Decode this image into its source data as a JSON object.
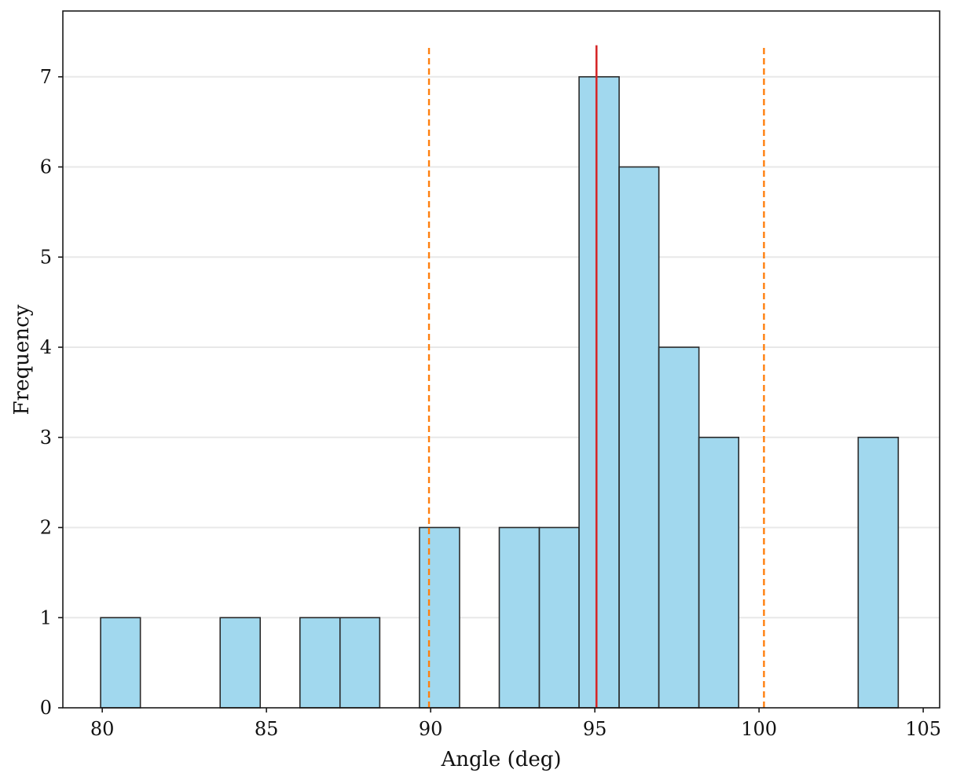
{
  "chart_data": {
    "type": "bar",
    "xlabel": "Angle (deg)",
    "ylabel": "Frequency",
    "xlim": [
      78.8,
      105.5
    ],
    "ylim": [
      0,
      7.73
    ],
    "xticks": [
      80,
      85,
      90,
      95,
      100,
      105
    ],
    "yticks": [
      0,
      1,
      2,
      3,
      4,
      5,
      6,
      7
    ],
    "grid": "horizontal",
    "bin_edges": [
      79.95,
      81.16,
      82.38,
      83.59,
      84.81,
      86.02,
      87.24,
      88.45,
      89.66,
      90.88,
      92.09,
      93.31,
      94.52,
      95.74,
      96.95,
      98.17,
      99.38,
      100.59,
      101.81,
      103.02,
      104.24
    ],
    "values": [
      1,
      0,
      0,
      1,
      0,
      1,
      1,
      0,
      2,
      0,
      2,
      2,
      7,
      6,
      4,
      3,
      0,
      0,
      0,
      3
    ],
    "reference_lines": [
      {
        "x": 95.05,
        "style": "solid",
        "color": "#d62728"
      },
      {
        "x": 89.95,
        "style": "dashed",
        "color": "#ff7f0e"
      },
      {
        "x": 100.15,
        "style": "dashed",
        "color": "#ff7f0e"
      }
    ],
    "bar_color": "#a1d8ee",
    "edge_color": "#2a2a2a"
  }
}
